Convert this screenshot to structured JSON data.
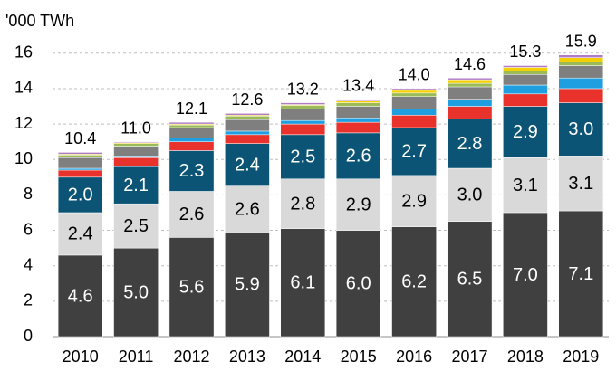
{
  "chart_data": {
    "type": "stacked_bar",
    "title": "'000 TWh",
    "categories": [
      "2010",
      "2011",
      "2012",
      "2013",
      "2014",
      "2015",
      "2016",
      "2017",
      "2018",
      "2019"
    ],
    "ylim": [
      0,
      16.5
    ],
    "yticks": [
      0,
      2,
      4,
      6,
      8,
      10,
      12,
      14,
      16
    ],
    "grid": true,
    "series": [
      {
        "color": "#404040",
        "label_color": "#ffffff",
        "values": [
          4.6,
          5.0,
          5.6,
          5.9,
          6.1,
          6.0,
          6.2,
          6.5,
          7.0,
          7.1
        ],
        "value_labels": [
          "4.6",
          "5.0",
          "5.6",
          "5.9",
          "6.1",
          "6.0",
          "6.2",
          "6.5",
          "7.0",
          "7.1"
        ]
      },
      {
        "color": "#d9d9d9",
        "label_color": "#000000",
        "values": [
          2.4,
          2.5,
          2.6,
          2.6,
          2.8,
          2.9,
          2.9,
          3.0,
          3.1,
          3.1
        ],
        "value_labels": [
          "2.4",
          "2.5",
          "2.6",
          "2.6",
          "2.8",
          "2.9",
          "2.9",
          "3.0",
          "3.1",
          "3.1"
        ]
      },
      {
        "color": "#0b5475",
        "label_color": "#ffffff",
        "values": [
          2.0,
          2.1,
          2.3,
          2.4,
          2.5,
          2.6,
          2.7,
          2.8,
          2.9,
          3.0
        ],
        "value_labels": [
          "2.0",
          "2.1",
          "2.3",
          "2.4",
          "2.5",
          "2.6",
          "2.7",
          "2.8",
          "2.9",
          "3.0"
        ]
      },
      {
        "color": "#e8322b",
        "values": [
          0.4,
          0.5,
          0.5,
          0.5,
          0.6,
          0.6,
          0.7,
          0.7,
          0.7,
          0.8
        ]
      },
      {
        "color": "#1f9ee0",
        "values": [
          0.1,
          0.1,
          0.2,
          0.2,
          0.2,
          0.25,
          0.35,
          0.4,
          0.5,
          0.6
        ]
      },
      {
        "color": "#7f7f7f",
        "values": [
          0.6,
          0.55,
          0.6,
          0.65,
          0.65,
          0.65,
          0.7,
          0.7,
          0.6,
          0.7
        ]
      },
      {
        "color": "#9bbb59",
        "values": [
          0.15,
          0.15,
          0.15,
          0.2,
          0.2,
          0.2,
          0.2,
          0.2,
          0.2,
          0.2
        ]
      },
      {
        "color": "#f5d000",
        "values": [
          0.05,
          0.05,
          0.05,
          0.05,
          0.05,
          0.1,
          0.15,
          0.2,
          0.2,
          0.25
        ]
      },
      {
        "color": "#b07cc6",
        "values": [
          0.1,
          0.05,
          0.1,
          0.1,
          0.1,
          0.1,
          0.1,
          0.1,
          0.1,
          0.15
        ]
      }
    ],
    "totals": {
      "values": [
        10.4,
        11.0,
        12.1,
        12.6,
        13.2,
        13.4,
        14.0,
        14.6,
        15.3,
        15.9
      ],
      "value_labels": [
        "10.4",
        "11.0",
        "12.1",
        "12.6",
        "13.2",
        "13.4",
        "14.0",
        "14.6",
        "15.3",
        "15.9"
      ]
    }
  }
}
